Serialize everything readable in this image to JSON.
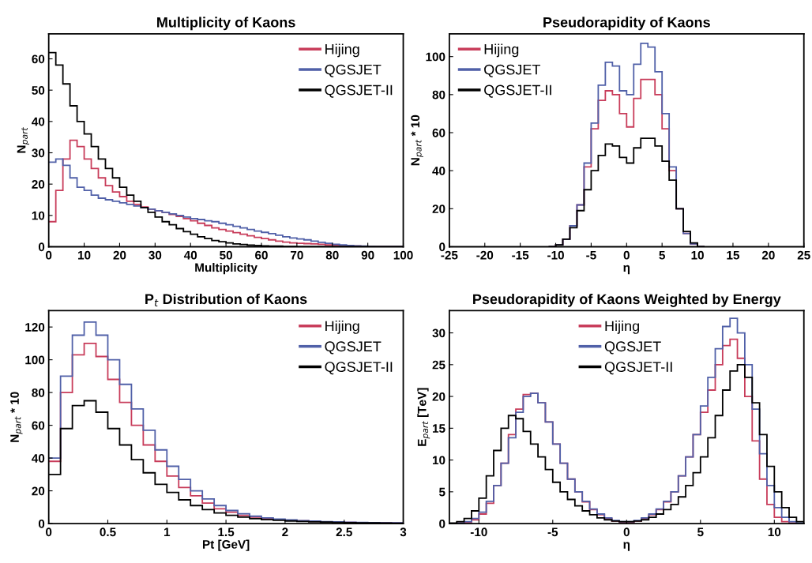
{
  "chart_data": [
    {
      "type": "histogram",
      "title": "Multiplicity of Kaons",
      "xlabel": "Multiplicity",
      "ylabel": "N$_{part}$",
      "legend": "top right",
      "grid": false,
      "bins": [
        0,
        2,
        4,
        6,
        8,
        10,
        12,
        14,
        16,
        18,
        20,
        22,
        24,
        26,
        28,
        30,
        32,
        34,
        36,
        38,
        40,
        42,
        44,
        46,
        48,
        50,
        52,
        54,
        56,
        58,
        60,
        62,
        64,
        66,
        68,
        70,
        72,
        74,
        76,
        78,
        80,
        82,
        84,
        86,
        88,
        90,
        92,
        94,
        96,
        98,
        100
      ],
      "xlim": [
        0,
        100
      ],
      "xticks": [
        0,
        10,
        20,
        30,
        40,
        50,
        60,
        70,
        80,
        90,
        100
      ],
      "ylim": [
        0,
        68
      ],
      "yticks": [
        0,
        10,
        20,
        30,
        40,
        50,
        60
      ],
      "series": [
        {
          "name": "Hijing",
          "color": "#c83c5a",
          "values": [
            8,
            18,
            28,
            34,
            32,
            28,
            25,
            22,
            19.5,
            17.5,
            16,
            14.5,
            13.5,
            12.7,
            12,
            11.5,
            11,
            10.3,
            9.7,
            9,
            8.3,
            7.5,
            6.8,
            6,
            5.5,
            5,
            4.5,
            4,
            3.5,
            3,
            2.6,
            2.2,
            1.8,
            1.5,
            1.2,
            1.1,
            1,
            0.9,
            0.8,
            0.6,
            0.5,
            0.4,
            0.3,
            0.2,
            0.1,
            0,
            0,
            0,
            0,
            0
          ]
        },
        {
          "name": "QGSJET",
          "color": "#5060a8",
          "values": [
            27,
            28,
            26,
            22,
            19,
            18,
            16.5,
            15.5,
            15,
            14.5,
            14,
            13.5,
            13,
            12.5,
            12,
            11.5,
            11,
            10.5,
            10,
            9.5,
            9,
            8.7,
            8.3,
            8,
            7.5,
            7,
            6.5,
            6,
            5.5,
            5,
            4.6,
            4.2,
            3.7,
            3.2,
            2.8,
            2.5,
            2.2,
            1.8,
            1.4,
            1.1,
            0.8,
            0.6,
            0.4,
            0.3,
            0.2,
            0.1,
            0,
            0,
            0,
            0
          ]
        },
        {
          "name": "QGSJET-II",
          "color": "#000000",
          "values": [
            62,
            58,
            52,
            45,
            40,
            36,
            32,
            28,
            25,
            22,
            19,
            16.5,
            14.5,
            12.5,
            11,
            9.5,
            8,
            7,
            5.8,
            4.8,
            4,
            3.2,
            2.6,
            2,
            1.6,
            1.2,
            0.9,
            0.7,
            0.5,
            0.4,
            0.3,
            0.2,
            0.2,
            0.1,
            0.1,
            0,
            0,
            0,
            0,
            0,
            0,
            0,
            0,
            0,
            0,
            0,
            0,
            0,
            0,
            0
          ]
        }
      ]
    },
    {
      "type": "histogram",
      "title": "Pseudorapidity of Kaons",
      "xlabel": "η",
      "ylabel": "N$_{part}$ * 10",
      "legend": "top left",
      "grid": false,
      "bins": [
        -11,
        -10,
        -9,
        -8,
        -7,
        -6,
        -5,
        -4,
        -3,
        -2,
        -1,
        0,
        1,
        2,
        3,
        4,
        5,
        6,
        7,
        8,
        9,
        10,
        11
      ],
      "xlim": [
        -25,
        25
      ],
      "xticks": [
        -25,
        -20,
        -15,
        -10,
        -5,
        0,
        5,
        10,
        15,
        20,
        25
      ],
      "ylim": [
        0,
        112
      ],
      "yticks": [
        0,
        20,
        40,
        60,
        80,
        100
      ],
      "series": [
        {
          "name": "Hijing",
          "color": "#c83c5a",
          "values": [
            0,
            1,
            4,
            11,
            22,
            42,
            62,
            77,
            82,
            80,
            70,
            63,
            78,
            88,
            88,
            80,
            62,
            40,
            20,
            7,
            1.5,
            0
          ]
        },
        {
          "name": "QGSJET",
          "color": "#5060a8",
          "values": [
            0,
            1,
            4,
            11,
            22,
            44,
            65,
            85,
            97,
            95,
            82,
            80,
            96,
            107,
            105,
            92,
            70,
            42,
            20,
            7,
            1.5,
            0
          ]
        },
        {
          "name": "QGSJET-II",
          "color": "#000000",
          "values": [
            0,
            1,
            4,
            10,
            19,
            30,
            40,
            48,
            54,
            53,
            47,
            44,
            52,
            57,
            57,
            53,
            45,
            35,
            20,
            8,
            2,
            0
          ]
        }
      ]
    },
    {
      "type": "histogram",
      "title": "P$_{t}$ Distribution of Kaons",
      "xlabel": "Pt [GeV]",
      "ylabel": "N$_{part}$ * 10",
      "legend": "top right",
      "grid": false,
      "bins": [
        0,
        0.1,
        0.2,
        0.3,
        0.4,
        0.5,
        0.6,
        0.7,
        0.8,
        0.9,
        1.0,
        1.1,
        1.2,
        1.3,
        1.4,
        1.5,
        1.6,
        1.7,
        1.8,
        1.9,
        2.0,
        2.1,
        2.2,
        2.3,
        2.4,
        2.5,
        2.6,
        2.7,
        2.8,
        2.9,
        3.0
      ],
      "xlim": [
        0,
        3
      ],
      "xticks": [
        0,
        0.5,
        1,
        1.5,
        2,
        2.5,
        3
      ],
      "ylim": [
        0,
        130
      ],
      "yticks": [
        0,
        20,
        40,
        60,
        80,
        100,
        120
      ],
      "series": [
        {
          "name": "Hijing",
          "color": "#c83c5a",
          "values": [
            38,
            80,
            103,
            110,
            102,
            88,
            74,
            60,
            48,
            38,
            29,
            22,
            17,
            12.5,
            9,
            7,
            5,
            4,
            3,
            2.5,
            2,
            1.6,
            1.3,
            1.1,
            0.9,
            0.7,
            0.6,
            0.5,
            0.4,
            0.3
          ]
        },
        {
          "name": "QGSJET",
          "color": "#5060a8",
          "values": [
            40,
            90,
            115,
            123,
            115,
            100,
            85,
            70,
            57,
            45,
            35,
            27,
            20,
            15,
            11,
            8,
            6,
            4.5,
            3.5,
            2.8,
            2.2,
            1.8,
            1.5,
            1.2,
            1,
            0.8,
            0.7,
            0.6,
            0.5,
            0.4
          ]
        },
        {
          "name": "QGSJET-II",
          "color": "#000000",
          "values": [
            30,
            58,
            72,
            75,
            68,
            58,
            48,
            39,
            31,
            24,
            19,
            14.5,
            11,
            8.5,
            6.5,
            5,
            4,
            3,
            2.4,
            2,
            1.6,
            1.3,
            1.1,
            0.9,
            0.7,
            0.6,
            0.5,
            0.4,
            0.3,
            0.2
          ]
        }
      ]
    },
    {
      "type": "histogram",
      "title": "Pseudorapidity of Kaons Weighted by Energy",
      "xlabel": "η",
      "ylabel": "E$_{part}$ [TeV]",
      "legend": "top",
      "grid": false,
      "bins": [
        -12,
        -11.5,
        -11,
        -10.5,
        -10,
        -9.5,
        -9,
        -8.5,
        -8,
        -7.5,
        -7,
        -6.5,
        -6,
        -5.5,
        -5,
        -4.5,
        -4,
        -3.5,
        -3,
        -2.5,
        -2,
        -1.5,
        -1,
        -0.5,
        0,
        0.5,
        1,
        1.5,
        2,
        2.5,
        3,
        3.5,
        4,
        4.5,
        5,
        5.5,
        6,
        6.5,
        7,
        7.5,
        8,
        8.5,
        9,
        9.5,
        10,
        10.5,
        11,
        11.5,
        12
      ],
      "xlim": [
        -12,
        12
      ],
      "xticks": [
        -10,
        -5,
        0,
        5,
        10
      ],
      "ylim": [
        0,
        33.5
      ],
      "yticks": [
        0,
        5,
        10,
        15,
        20,
        25,
        30
      ],
      "series": [
        {
          "name": "Hijing",
          "color": "#c83c5a",
          "values": [
            0,
            0.1,
            0.2,
            0.6,
            1.5,
            3.2,
            6,
            9.5,
            14,
            18,
            20.3,
            20.5,
            19,
            16,
            12.5,
            9.5,
            7,
            5,
            3.4,
            2.2,
            1.4,
            0.8,
            0.4,
            0.2,
            0.2,
            0.4,
            0.8,
            1.4,
            2.2,
            3.4,
            5,
            7.5,
            10.5,
            14,
            17.5,
            21,
            25,
            28,
            29,
            26,
            20,
            13,
            7,
            3,
            1,
            0.3,
            0.1,
            0
          ]
        },
        {
          "name": "QGSJET",
          "color": "#5060a8",
          "values": [
            0,
            0.1,
            0.3,
            0.8,
            1.8,
            3.5,
            6,
            9.5,
            13.5,
            17.5,
            20,
            20.5,
            19,
            16,
            12.5,
            9.5,
            7,
            5,
            3.5,
            2.3,
            1.5,
            0.9,
            0.5,
            0.3,
            0.3,
            0.5,
            0.9,
            1.5,
            2.3,
            3.5,
            5,
            7.5,
            10.5,
            14,
            18.5,
            23,
            27.5,
            31,
            32.3,
            30,
            25,
            18,
            11,
            6,
            2.5,
            1,
            0.3,
            0.1
          ]
        },
        {
          "name": "QGSJET-II",
          "color": "#000000",
          "values": [
            0.1,
            0.3,
            0.8,
            2,
            4,
            7.5,
            11.5,
            15,
            17,
            16.5,
            14.5,
            12.5,
            10.5,
            8.5,
            6.5,
            5,
            3.8,
            2.8,
            2,
            1.4,
            0.9,
            0.6,
            0.4,
            0.3,
            0.3,
            0.4,
            0.6,
            1,
            1.5,
            2.2,
            3,
            4.2,
            6,
            8,
            10.5,
            13.5,
            17,
            21,
            24,
            25,
            23,
            19,
            14,
            9,
            5,
            2.5,
            1,
            0.3
          ]
        }
      ]
    }
  ]
}
